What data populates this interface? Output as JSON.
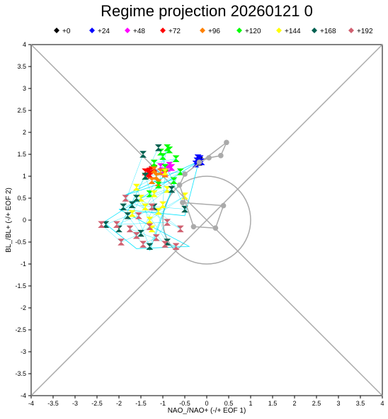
{
  "chart_data": {
    "type": "scatter",
    "title": "Regime projection 20260121 0",
    "xlabel": "NAO_/NAO+ (-/+ EOF 1)",
    "ylabel": "BL_/BL+ (-/+ EOF 2)",
    "xlim": [
      -4,
      4
    ],
    "ylim": [
      -4,
      4
    ],
    "x_ticks": [
      "-4",
      "-3.5",
      "-3",
      "-2.5",
      "-2",
      "-1.5",
      "-1",
      "-0.5",
      "0",
      "0.5",
      "1",
      "1.5",
      "2",
      "2.5",
      "3",
      "3.5",
      "4"
    ],
    "y_ticks": [
      "-4",
      "-3.5",
      "-3",
      "-2.5",
      "-2",
      "-1.5",
      "-1",
      "-0.5",
      "0",
      "0.5",
      "1",
      "1.5",
      "2",
      "2.5",
      "3",
      "3.5",
      "4"
    ],
    "reference_circle_radius": 1,
    "diagonals": true,
    "legend_position": "top",
    "series": [
      {
        "name": "+0",
        "color": "#000000",
        "marker": "diamond",
        "x": [
          -0.18,
          -0.16
        ],
        "y": [
          1.32,
          1.36
        ]
      },
      {
        "name": "+24",
        "color": "#0000ff",
        "marker": "diamond",
        "x": [
          -0.22,
          -0.15,
          -0.25,
          -0.12,
          -0.2
        ],
        "y": [
          1.35,
          1.4,
          1.28,
          1.33,
          1.42
        ]
      },
      {
        "name": "+48",
        "color": "#ff00ff",
        "marker": "diamond",
        "x": [
          -0.9,
          -0.85,
          -1.0,
          -0.8,
          -0.95,
          -1.05
        ],
        "y": [
          1.18,
          1.25,
          1.12,
          1.2,
          1.08,
          1.22
        ]
      },
      {
        "name": "+72",
        "color": "#ff0000",
        "marker": "diamond",
        "x": [
          -1.3,
          -1.35,
          -1.25,
          -1.4,
          -1.32,
          -1.2,
          -1.28
        ],
        "y": [
          1.12,
          1.08,
          1.15,
          1.1,
          1.05,
          1.18,
          1.02
        ]
      },
      {
        "name": "+96",
        "color": "#ff8000",
        "marker": "diamond",
        "x": [
          -1.15,
          -1.05,
          -1.25,
          -1.1,
          -0.95,
          -1.2
        ],
        "y": [
          1.0,
          1.1,
          0.9,
          0.85,
          1.05,
          1.15
        ]
      },
      {
        "name": "+120",
        "color": "#00ff00",
        "marker": "diamond",
        "x": [
          -1.0,
          -0.85,
          -1.2,
          -0.7,
          -1.4,
          -0.6,
          -1.1,
          -0.9,
          -1.3,
          -0.75,
          -0.95,
          -1.05
        ],
        "y": [
          1.45,
          1.6,
          1.3,
          1.4,
          1.0,
          1.1,
          0.8,
          1.65,
          0.6,
          0.9,
          1.2,
          1.55
        ]
      },
      {
        "name": "+144",
        "color": "#ffff00",
        "marker": "diamond",
        "x": [
          -1.2,
          -1.4,
          -0.9,
          -1.5,
          -1.7,
          -1.1,
          -0.5,
          -1.3,
          -1.0,
          -0.95,
          -1.6,
          -1.25
        ],
        "y": [
          0.6,
          0.3,
          0.7,
          0.5,
          0.15,
          0.2,
          0.55,
          0.0,
          0.35,
          1.1,
          0.75,
          -0.2
        ]
      },
      {
        "name": "+168",
        "color": "#006050",
        "marker": "diamond",
        "x": [
          -2.3,
          -1.8,
          -1.5,
          -1.2,
          -1.6,
          -0.9,
          -1.4,
          -2.0,
          -1.1,
          -0.5,
          -1.7,
          -1.3,
          -0.8,
          -1.9,
          -1.45
        ],
        "y": [
          -0.1,
          0.1,
          -0.3,
          0.3,
          0.5,
          -0.5,
          1.0,
          -0.2,
          1.65,
          0.25,
          0.35,
          -0.6,
          0.7,
          0.3,
          1.5
        ]
      },
      {
        "name": "+192",
        "color": "#d06070",
        "marker": "diamond",
        "x": [
          -2.4,
          -1.95,
          -1.6,
          -1.3,
          -0.95,
          -0.7,
          -1.75,
          -1.45,
          -1.15,
          -0.9,
          -2.05,
          -1.55,
          -1.25,
          -0.6,
          -1.85
        ],
        "y": [
          -0.1,
          -0.5,
          -0.35,
          -0.15,
          -0.55,
          -0.6,
          -0.2,
          -0.55,
          -0.4,
          -0.05,
          -0.1,
          0.1,
          0.3,
          -0.2,
          0.5
        ]
      }
    ],
    "mean_track": {
      "color": "#aaaaaa",
      "x": [
        -0.17,
        0.05,
        0.32,
        0.45,
        -0.5,
        -0.62,
        -0.3,
        0.2,
        0.38,
        -0.55
      ],
      "y": [
        1.32,
        1.42,
        1.47,
        1.77,
        1.05,
        0.8,
        -0.15,
        -0.18,
        0.33,
        0.4
      ]
    },
    "spread_lines": {
      "color": "#00e5ff",
      "x": [
        -0.18,
        -2.35,
        -1.6,
        -0.4,
        -2.0,
        -0.5,
        -0.18,
        -1.9,
        -0.7,
        -1.3
      ],
      "y": [
        1.34,
        -0.05,
        -0.65,
        -0.6,
        0.25,
        0.1,
        1.34,
        0.55,
        0.95,
        -0.7
      ]
    }
  }
}
